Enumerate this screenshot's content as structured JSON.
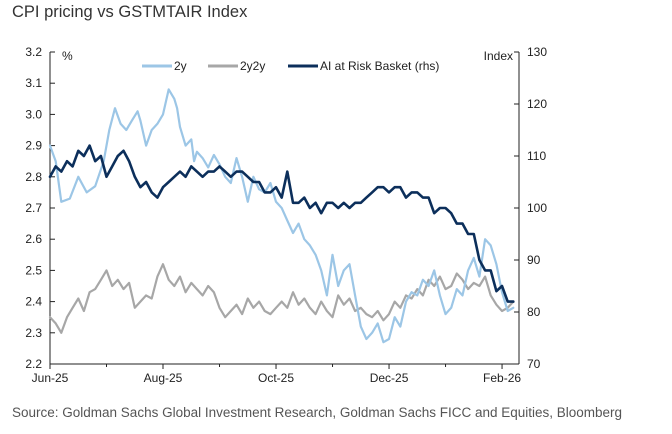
{
  "chart_data": {
    "type": "line",
    "title": "CPI pricing vs GSTMTAIR Index",
    "source": "Source: Goldman Sachs Global Investment Research, Goldman Sachs FICC and Equities, Bloomberg",
    "left_unit": "%",
    "right_unit": "Index",
    "ylim_left": [
      2.2,
      3.2
    ],
    "ylim_right": [
      70,
      130
    ],
    "left_ticks": [
      "3.2",
      "3.1",
      "3.0",
      "2.9",
      "2.8",
      "2.7",
      "2.6",
      "2.5",
      "2.4",
      "2.3",
      "2.2"
    ],
    "right_ticks": [
      "130",
      "120",
      "110",
      "100",
      "90",
      "80",
      "70"
    ],
    "x_labels": [
      "Jun-25",
      "Aug-25",
      "Oct-25",
      "Dec-25",
      "Feb-26"
    ],
    "x_range_months": [
      0,
      8.3
    ],
    "series": [
      {
        "name": "2y",
        "axis": "left",
        "color": "#9cc6e6",
        "x": [
          0,
          0.1,
          0.2,
          0.35,
          0.5,
          0.65,
          0.8,
          0.95,
          1.05,
          1.15,
          1.25,
          1.35,
          1.45,
          1.55,
          1.6,
          1.7,
          1.8,
          1.9,
          2.0,
          2.1,
          2.2,
          2.25,
          2.3,
          2.4,
          2.5,
          2.55,
          2.6,
          2.7,
          2.8,
          2.9,
          3.0,
          3.1,
          3.2,
          3.3,
          3.4,
          3.5,
          3.6,
          3.7,
          3.8,
          3.9,
          4.0,
          4.1,
          4.2,
          4.3,
          4.4,
          4.5,
          4.6,
          4.7,
          4.8,
          4.9,
          5.0,
          5.1,
          5.2,
          5.3,
          5.4,
          5.5,
          5.6,
          5.7,
          5.8,
          5.9,
          6.0,
          6.1,
          6.2,
          6.3,
          6.4,
          6.5,
          6.6,
          6.7,
          6.8,
          6.9,
          7.0,
          7.1,
          7.2,
          7.3,
          7.4,
          7.5,
          7.6,
          7.7,
          7.8,
          7.9,
          8.0,
          8.1,
          8.2
        ],
        "values": [
          2.9,
          2.85,
          2.72,
          2.73,
          2.8,
          2.75,
          2.77,
          2.85,
          2.95,
          3.02,
          2.97,
          2.95,
          2.98,
          3.01,
          2.98,
          2.9,
          2.95,
          2.97,
          3.0,
          3.08,
          3.05,
          3.02,
          2.96,
          2.9,
          2.92,
          2.85,
          2.88,
          2.86,
          2.83,
          2.87,
          2.84,
          2.8,
          2.78,
          2.86,
          2.8,
          2.72,
          2.8,
          2.76,
          2.75,
          2.78,
          2.72,
          2.7,
          2.66,
          2.62,
          2.65,
          2.6,
          2.58,
          2.55,
          2.5,
          2.42,
          2.55,
          2.45,
          2.5,
          2.52,
          2.42,
          2.32,
          2.28,
          2.3,
          2.33,
          2.27,
          2.28,
          2.35,
          2.32,
          2.4,
          2.43,
          2.42,
          2.47,
          2.45,
          2.5,
          2.42,
          2.36,
          2.38,
          2.44,
          2.42,
          2.5,
          2.54,
          2.48,
          2.6,
          2.58,
          2.52,
          2.43,
          2.37,
          2.38
        ]
      },
      {
        "name": "2y2y",
        "axis": "left",
        "color": "#a7a7a7",
        "x": [
          0,
          0.1,
          0.2,
          0.3,
          0.4,
          0.5,
          0.6,
          0.7,
          0.8,
          0.9,
          1.0,
          1.1,
          1.2,
          1.3,
          1.4,
          1.5,
          1.6,
          1.7,
          1.8,
          1.9,
          2.0,
          2.1,
          2.2,
          2.3,
          2.4,
          2.5,
          2.6,
          2.7,
          2.8,
          2.9,
          3.0,
          3.1,
          3.2,
          3.3,
          3.4,
          3.5,
          3.6,
          3.7,
          3.8,
          3.9,
          4.0,
          4.1,
          4.2,
          4.3,
          4.4,
          4.5,
          4.6,
          4.7,
          4.8,
          4.9,
          5.0,
          5.1,
          5.2,
          5.3,
          5.4,
          5.5,
          5.6,
          5.7,
          5.8,
          5.9,
          6.0,
          6.1,
          6.2,
          6.3,
          6.4,
          6.5,
          6.6,
          6.7,
          6.8,
          6.9,
          7.0,
          7.1,
          7.2,
          7.3,
          7.4,
          7.5,
          7.6,
          7.7,
          7.8,
          7.9,
          8.0,
          8.1,
          8.2
        ],
        "values": [
          2.35,
          2.33,
          2.3,
          2.35,
          2.38,
          2.41,
          2.37,
          2.43,
          2.44,
          2.47,
          2.5,
          2.45,
          2.47,
          2.44,
          2.46,
          2.38,
          2.4,
          2.42,
          2.41,
          2.48,
          2.52,
          2.47,
          2.45,
          2.48,
          2.43,
          2.46,
          2.44,
          2.42,
          2.45,
          2.43,
          2.38,
          2.35,
          2.37,
          2.39,
          2.36,
          2.41,
          2.38,
          2.4,
          2.37,
          2.36,
          2.38,
          2.4,
          2.38,
          2.43,
          2.39,
          2.41,
          2.38,
          2.36,
          2.4,
          2.37,
          2.35,
          2.42,
          2.39,
          2.41,
          2.37,
          2.38,
          2.36,
          2.35,
          2.37,
          2.34,
          2.36,
          2.4,
          2.38,
          2.42,
          2.41,
          2.44,
          2.42,
          2.47,
          2.45,
          2.48,
          2.44,
          2.45,
          2.49,
          2.47,
          2.44,
          2.46,
          2.45,
          2.48,
          2.42,
          2.39,
          2.37,
          2.38,
          2.4
        ]
      },
      {
        "name": "AI at Risk Basket (rhs)",
        "axis": "right",
        "color": "#0c2f5b",
        "x": [
          0,
          0.1,
          0.2,
          0.3,
          0.4,
          0.5,
          0.6,
          0.7,
          0.8,
          0.9,
          1.0,
          1.1,
          1.2,
          1.3,
          1.4,
          1.5,
          1.6,
          1.7,
          1.8,
          1.9,
          2.0,
          2.1,
          2.2,
          2.3,
          2.4,
          2.5,
          2.6,
          2.7,
          2.8,
          2.9,
          3.0,
          3.1,
          3.2,
          3.3,
          3.4,
          3.5,
          3.6,
          3.7,
          3.8,
          3.9,
          4.0,
          4.1,
          4.2,
          4.3,
          4.4,
          4.5,
          4.6,
          4.7,
          4.8,
          4.9,
          5.0,
          5.1,
          5.2,
          5.3,
          5.4,
          5.5,
          5.6,
          5.7,
          5.8,
          5.9,
          6.0,
          6.1,
          6.2,
          6.3,
          6.4,
          6.5,
          6.6,
          6.7,
          6.8,
          6.9,
          7.0,
          7.1,
          7.2,
          7.3,
          7.4,
          7.5,
          7.6,
          7.7,
          7.8,
          7.9,
          8.0,
          8.1,
          8.2
        ],
        "values": [
          106,
          108,
          107,
          109,
          108,
          111,
          110,
          112,
          109,
          110,
          106,
          108,
          110,
          111,
          109,
          106,
          104,
          105,
          103,
          102,
          104,
          105,
          106,
          107,
          106,
          108,
          107,
          106,
          107,
          107,
          108,
          107,
          106,
          107,
          107,
          106,
          105,
          105,
          103,
          103,
          104,
          102,
          107,
          101,
          101,
          102,
          100,
          101,
          99,
          101,
          101,
          100,
          101,
          100,
          101,
          101,
          102,
          103,
          104,
          104,
          103,
          104,
          104,
          102,
          103,
          103,
          102,
          102,
          99,
          100,
          100,
          99,
          97,
          97,
          95,
          95,
          90,
          88,
          88,
          84,
          85,
          82,
          82
        ]
      }
    ]
  }
}
